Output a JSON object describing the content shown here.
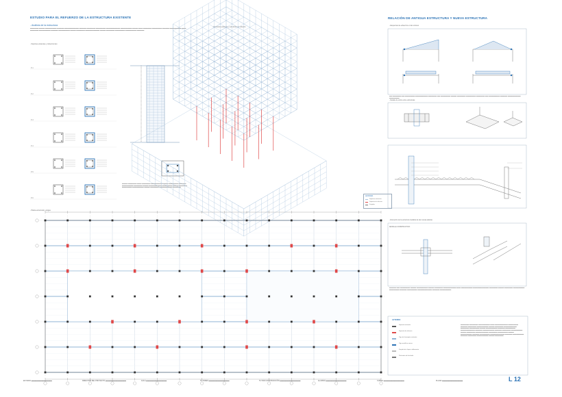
{
  "sheet": {
    "page_number": "L 12",
    "left_title": "ESTUDIO PARA EL REFUERZO DE LA ESTRUCTURA EXISTENTE",
    "left_subtitle": "- Análisis de la estructura",
    "left_caption": "- Soportes existentes y refuerzos tipo",
    "axon_caption": "- Estructura existente y estructura de refuerzo",
    "axon_legend_title": "LEYENDA",
    "axon_legend_items": [
      "Soportes existentes",
      "Soportes de refuerzo",
      "Forjados"
    ],
    "plan_caption": "- Planta estructural y cargas",
    "right_title": "RELACIÓN DE ANTIGUA ESTRUCTURA Y NUEVA ESTRUCTURA",
    "right_caption1": "- Esquemas de esfuerzos en las uniones",
    "right_caption2": "- Detalle de unión entre estructuras",
    "right_caption3": "- Encuentro de la estructura metálica de las nuevas plantas",
    "right_caption4": "DETALLE CONSTRUCTIVO",
    "legend_title": "LEYENDA",
    "legend_items": [
      "Soporte existente",
      "Soporte de refuerzo",
      "Viga de hormigón existente",
      "Viga metálica nueva",
      "Forjado de chapa colaborante",
      "Perímetro de fachada"
    ]
  },
  "column_sections": [
    {
      "label": "P-1"
    },
    {
      "label": "P-2"
    },
    {
      "label": "P-3"
    },
    {
      "label": "P-4"
    },
    {
      "label": "P-5"
    },
    {
      "label": "P-6"
    }
  ],
  "footer": {
    "items": [
      "ESTUDIO",
      "DIRECTOR DEL PROYECTO",
      "AULA",
      "TUTORES",
      "TUTOR CONSTRUCCIÓN",
      "ALUMNO",
      "CURSO",
      "PLANO"
    ]
  },
  "colors": {
    "accent_blue": "#2a72b5",
    "structure_line": "#a9c3dd",
    "reinforcement_red": "#e04848"
  }
}
